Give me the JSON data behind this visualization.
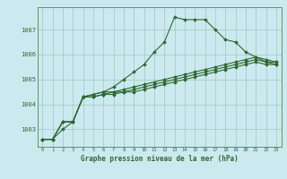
{
  "xlabel": "Graphe pression niveau de la mer (hPa)",
  "xlim": [
    -0.5,
    23.5
  ],
  "ylim": [
    1002.3,
    1007.9
  ],
  "yticks": [
    1003,
    1004,
    1005,
    1006,
    1007
  ],
  "xticks": [
    0,
    1,
    2,
    3,
    4,
    5,
    6,
    7,
    8,
    9,
    10,
    11,
    12,
    13,
    14,
    15,
    16,
    17,
    18,
    19,
    20,
    21,
    22,
    23
  ],
  "bg_color": "#cce9f0",
  "grid_color": "#99ccbb",
  "line_color": "#2d6a2d",
  "series": [
    [
      1002.6,
      1002.6,
      1003.0,
      1003.3,
      1004.3,
      1004.4,
      1004.5,
      1004.7,
      1005.0,
      1005.3,
      1005.6,
      1006.1,
      1006.5,
      1007.5,
      1007.4,
      1007.4,
      1007.4,
      1007.0,
      1006.6,
      1006.5,
      1006.1,
      1005.9,
      1005.7,
      1005.7
    ],
    [
      1002.6,
      1002.6,
      1003.3,
      1003.3,
      1004.3,
      1004.4,
      1004.5,
      1004.5,
      1004.6,
      1004.7,
      1004.8,
      1004.9,
      1005.0,
      1005.1,
      1005.2,
      1005.3,
      1005.4,
      1005.5,
      1005.6,
      1005.7,
      1005.8,
      1005.9,
      1005.8,
      1005.7
    ],
    [
      1002.6,
      1002.6,
      1003.3,
      1003.3,
      1004.3,
      1004.3,
      1004.4,
      1004.5,
      1004.5,
      1004.6,
      1004.7,
      1004.8,
      1004.9,
      1005.0,
      1005.1,
      1005.2,
      1005.3,
      1005.4,
      1005.5,
      1005.6,
      1005.7,
      1005.8,
      1005.7,
      1005.6
    ],
    [
      1002.6,
      1002.6,
      1003.3,
      1003.3,
      1004.3,
      1004.3,
      1004.4,
      1004.4,
      1004.5,
      1004.5,
      1004.6,
      1004.7,
      1004.8,
      1004.9,
      1005.0,
      1005.1,
      1005.2,
      1005.3,
      1005.4,
      1005.5,
      1005.6,
      1005.7,
      1005.6,
      1005.6
    ]
  ]
}
